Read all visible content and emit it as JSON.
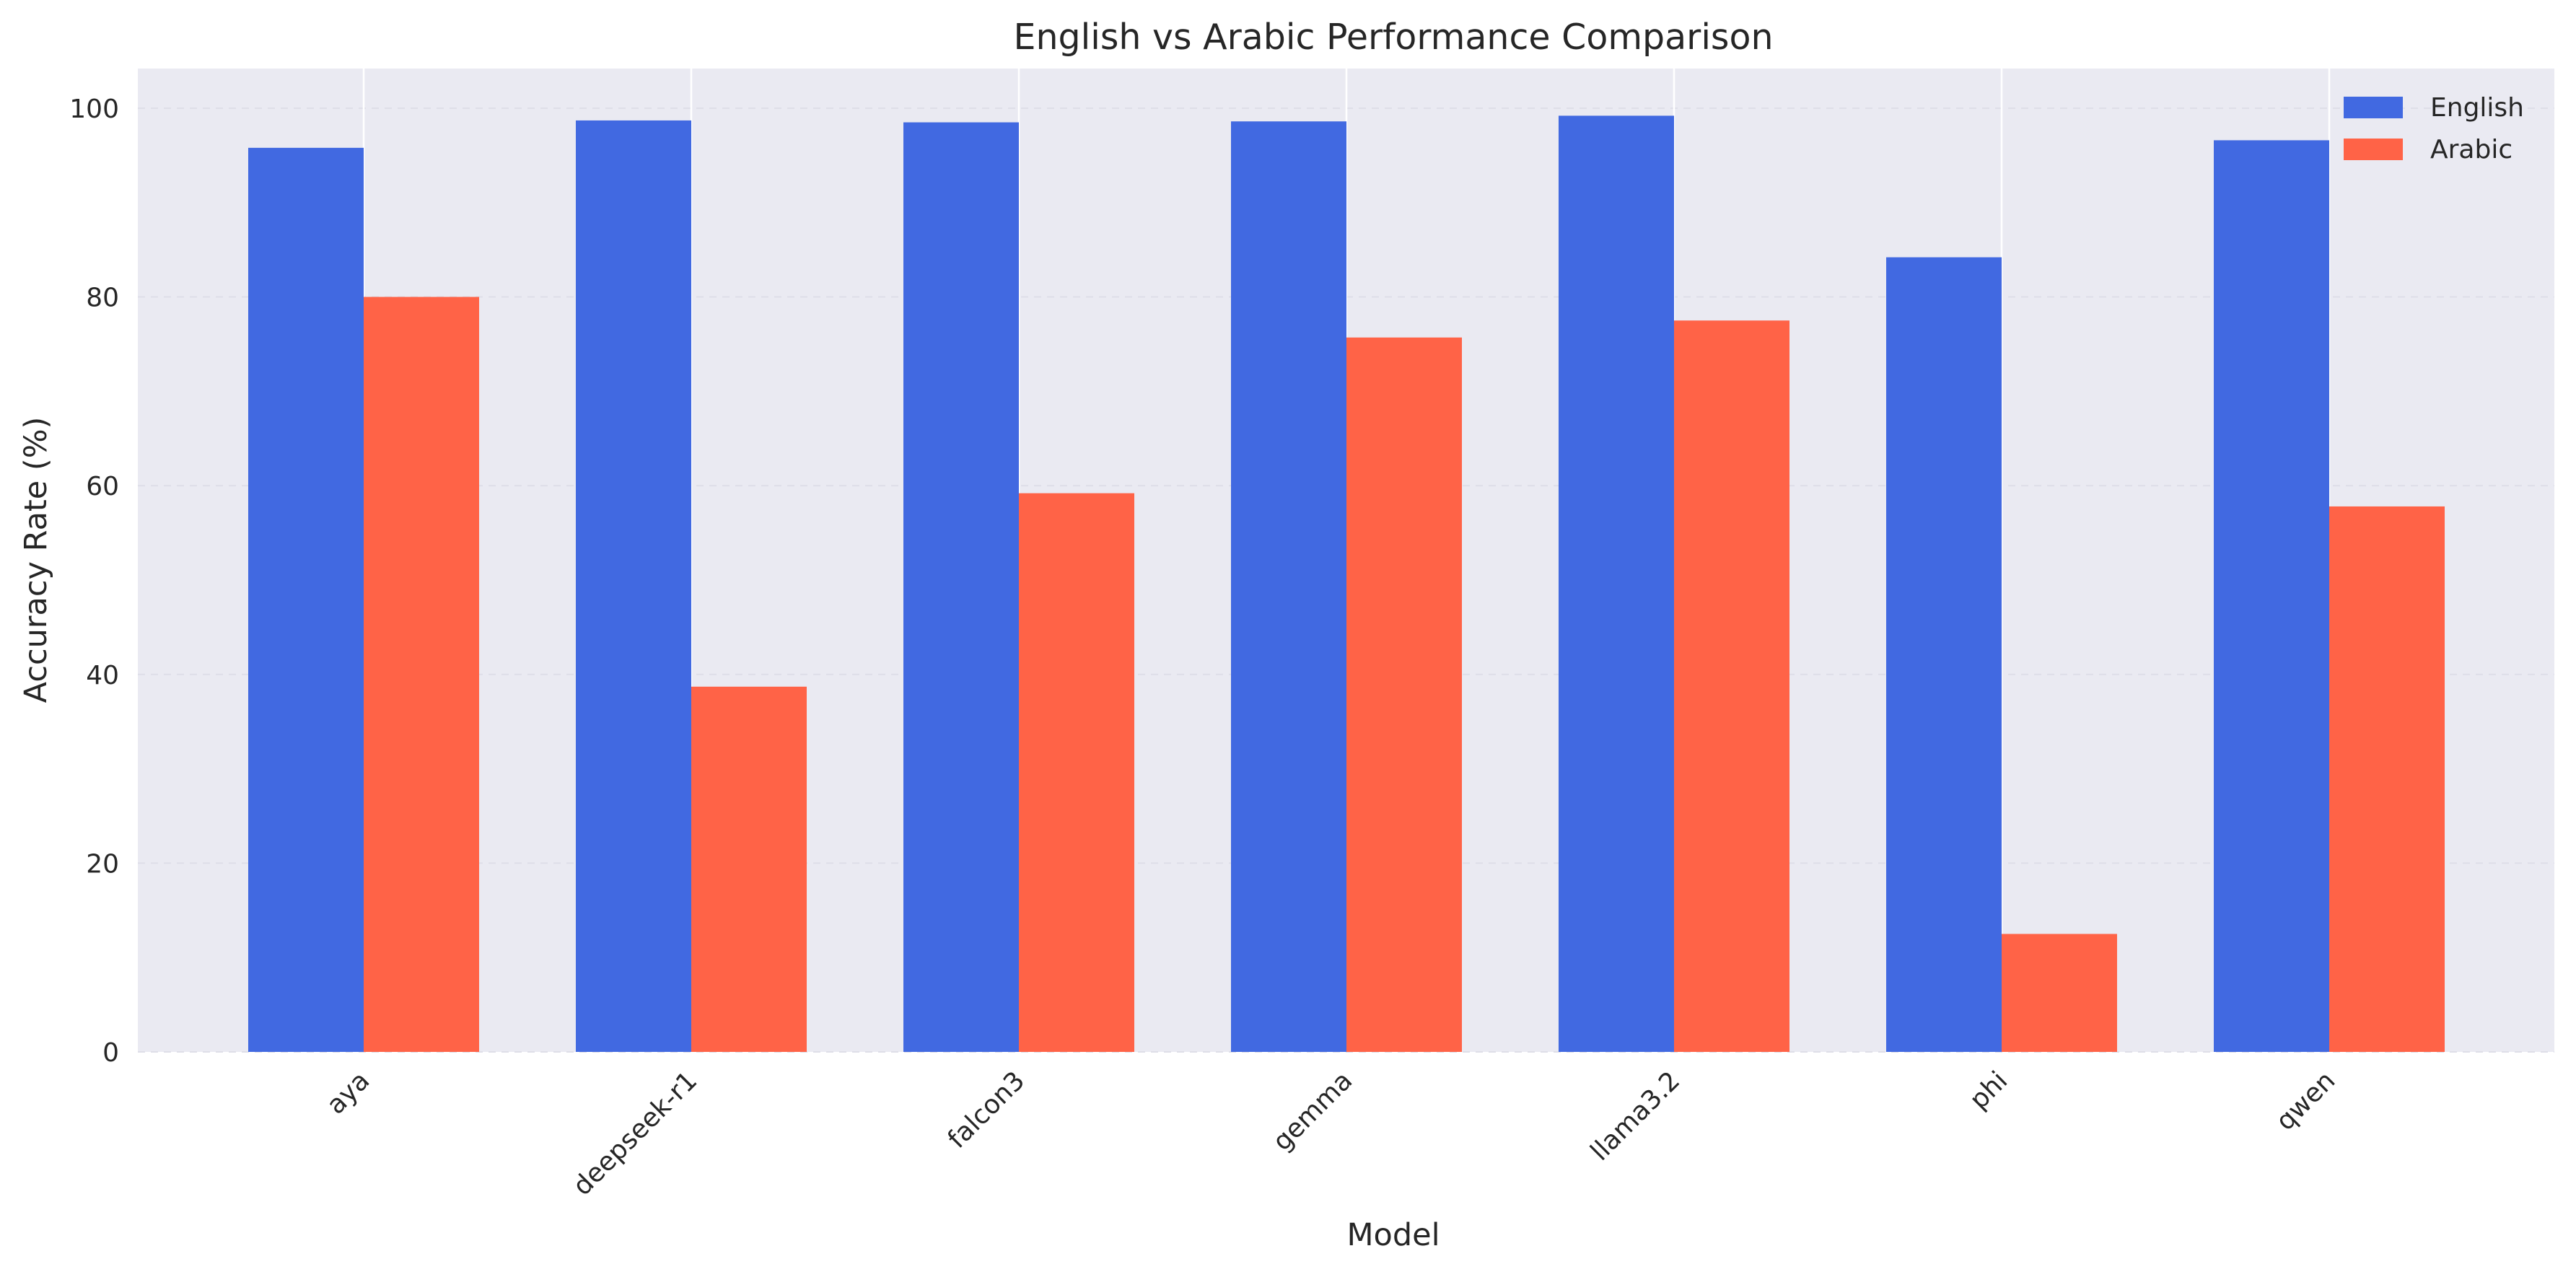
{
  "chart_data": {
    "type": "bar",
    "title": "English vs Arabic Performance Comparison",
    "xlabel": "Model",
    "ylabel": "Accuracy Rate (%)",
    "categories": [
      "aya",
      "deepseek-r1",
      "falcon3",
      "gemma",
      "llama3.2",
      "phi",
      "qwen"
    ],
    "series": [
      {
        "name": "English",
        "color": "#4169E1",
        "values": [
          95.8,
          98.7,
          98.5,
          98.6,
          99.2,
          84.2,
          96.6
        ]
      },
      {
        "name": "Arabic",
        "color": "#FF6347",
        "values": [
          80.0,
          38.7,
          59.2,
          75.7,
          77.5,
          12.5,
          57.8
        ]
      }
    ],
    "ylim": [
      0,
      104.2
    ],
    "yticks": [
      0,
      20,
      40,
      60,
      80,
      100
    ],
    "grid": true,
    "legend": "top-right",
    "background": "#EAEAF2"
  }
}
